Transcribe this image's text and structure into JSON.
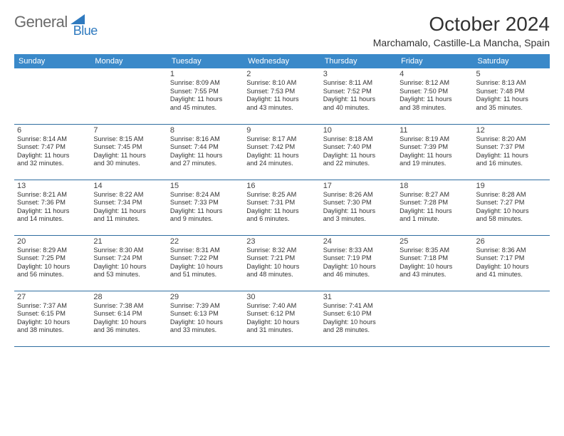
{
  "logo": {
    "word1": "General",
    "word2": "Blue",
    "mark_color": "#2f7abf",
    "text_color": "#6b6b6b"
  },
  "title": "October 2024",
  "location": "Marchamalo, Castille-La Mancha, Spain",
  "header_bg": "#3a89c9",
  "header_fg": "#ffffff",
  "border_color": "#2f6ea0",
  "weekdays": [
    "Sunday",
    "Monday",
    "Tuesday",
    "Wednesday",
    "Thursday",
    "Friday",
    "Saturday"
  ],
  "cell_fontsize": 9.2,
  "daynum_fontsize": 11,
  "weeks": [
    [
      null,
      null,
      {
        "n": "1",
        "sr": "Sunrise: 8:09 AM",
        "ss": "Sunset: 7:55 PM",
        "d1": "Daylight: 11 hours",
        "d2": "and 45 minutes."
      },
      {
        "n": "2",
        "sr": "Sunrise: 8:10 AM",
        "ss": "Sunset: 7:53 PM",
        "d1": "Daylight: 11 hours",
        "d2": "and 43 minutes."
      },
      {
        "n": "3",
        "sr": "Sunrise: 8:11 AM",
        "ss": "Sunset: 7:52 PM",
        "d1": "Daylight: 11 hours",
        "d2": "and 40 minutes."
      },
      {
        "n": "4",
        "sr": "Sunrise: 8:12 AM",
        "ss": "Sunset: 7:50 PM",
        "d1": "Daylight: 11 hours",
        "d2": "and 38 minutes."
      },
      {
        "n": "5",
        "sr": "Sunrise: 8:13 AM",
        "ss": "Sunset: 7:48 PM",
        "d1": "Daylight: 11 hours",
        "d2": "and 35 minutes."
      }
    ],
    [
      {
        "n": "6",
        "sr": "Sunrise: 8:14 AM",
        "ss": "Sunset: 7:47 PM",
        "d1": "Daylight: 11 hours",
        "d2": "and 32 minutes."
      },
      {
        "n": "7",
        "sr": "Sunrise: 8:15 AM",
        "ss": "Sunset: 7:45 PM",
        "d1": "Daylight: 11 hours",
        "d2": "and 30 minutes."
      },
      {
        "n": "8",
        "sr": "Sunrise: 8:16 AM",
        "ss": "Sunset: 7:44 PM",
        "d1": "Daylight: 11 hours",
        "d2": "and 27 minutes."
      },
      {
        "n": "9",
        "sr": "Sunrise: 8:17 AM",
        "ss": "Sunset: 7:42 PM",
        "d1": "Daylight: 11 hours",
        "d2": "and 24 minutes."
      },
      {
        "n": "10",
        "sr": "Sunrise: 8:18 AM",
        "ss": "Sunset: 7:40 PM",
        "d1": "Daylight: 11 hours",
        "d2": "and 22 minutes."
      },
      {
        "n": "11",
        "sr": "Sunrise: 8:19 AM",
        "ss": "Sunset: 7:39 PM",
        "d1": "Daylight: 11 hours",
        "d2": "and 19 minutes."
      },
      {
        "n": "12",
        "sr": "Sunrise: 8:20 AM",
        "ss": "Sunset: 7:37 PM",
        "d1": "Daylight: 11 hours",
        "d2": "and 16 minutes."
      }
    ],
    [
      {
        "n": "13",
        "sr": "Sunrise: 8:21 AM",
        "ss": "Sunset: 7:36 PM",
        "d1": "Daylight: 11 hours",
        "d2": "and 14 minutes."
      },
      {
        "n": "14",
        "sr": "Sunrise: 8:22 AM",
        "ss": "Sunset: 7:34 PM",
        "d1": "Daylight: 11 hours",
        "d2": "and 11 minutes."
      },
      {
        "n": "15",
        "sr": "Sunrise: 8:24 AM",
        "ss": "Sunset: 7:33 PM",
        "d1": "Daylight: 11 hours",
        "d2": "and 9 minutes."
      },
      {
        "n": "16",
        "sr": "Sunrise: 8:25 AM",
        "ss": "Sunset: 7:31 PM",
        "d1": "Daylight: 11 hours",
        "d2": "and 6 minutes."
      },
      {
        "n": "17",
        "sr": "Sunrise: 8:26 AM",
        "ss": "Sunset: 7:30 PM",
        "d1": "Daylight: 11 hours",
        "d2": "and 3 minutes."
      },
      {
        "n": "18",
        "sr": "Sunrise: 8:27 AM",
        "ss": "Sunset: 7:28 PM",
        "d1": "Daylight: 11 hours",
        "d2": "and 1 minute."
      },
      {
        "n": "19",
        "sr": "Sunrise: 8:28 AM",
        "ss": "Sunset: 7:27 PM",
        "d1": "Daylight: 10 hours",
        "d2": "and 58 minutes."
      }
    ],
    [
      {
        "n": "20",
        "sr": "Sunrise: 8:29 AM",
        "ss": "Sunset: 7:25 PM",
        "d1": "Daylight: 10 hours",
        "d2": "and 56 minutes."
      },
      {
        "n": "21",
        "sr": "Sunrise: 8:30 AM",
        "ss": "Sunset: 7:24 PM",
        "d1": "Daylight: 10 hours",
        "d2": "and 53 minutes."
      },
      {
        "n": "22",
        "sr": "Sunrise: 8:31 AM",
        "ss": "Sunset: 7:22 PM",
        "d1": "Daylight: 10 hours",
        "d2": "and 51 minutes."
      },
      {
        "n": "23",
        "sr": "Sunrise: 8:32 AM",
        "ss": "Sunset: 7:21 PM",
        "d1": "Daylight: 10 hours",
        "d2": "and 48 minutes."
      },
      {
        "n": "24",
        "sr": "Sunrise: 8:33 AM",
        "ss": "Sunset: 7:19 PM",
        "d1": "Daylight: 10 hours",
        "d2": "and 46 minutes."
      },
      {
        "n": "25",
        "sr": "Sunrise: 8:35 AM",
        "ss": "Sunset: 7:18 PM",
        "d1": "Daylight: 10 hours",
        "d2": "and 43 minutes."
      },
      {
        "n": "26",
        "sr": "Sunrise: 8:36 AM",
        "ss": "Sunset: 7:17 PM",
        "d1": "Daylight: 10 hours",
        "d2": "and 41 minutes."
      }
    ],
    [
      {
        "n": "27",
        "sr": "Sunrise: 7:37 AM",
        "ss": "Sunset: 6:15 PM",
        "d1": "Daylight: 10 hours",
        "d2": "and 38 minutes."
      },
      {
        "n": "28",
        "sr": "Sunrise: 7:38 AM",
        "ss": "Sunset: 6:14 PM",
        "d1": "Daylight: 10 hours",
        "d2": "and 36 minutes."
      },
      {
        "n": "29",
        "sr": "Sunrise: 7:39 AM",
        "ss": "Sunset: 6:13 PM",
        "d1": "Daylight: 10 hours",
        "d2": "and 33 minutes."
      },
      {
        "n": "30",
        "sr": "Sunrise: 7:40 AM",
        "ss": "Sunset: 6:12 PM",
        "d1": "Daylight: 10 hours",
        "d2": "and 31 minutes."
      },
      {
        "n": "31",
        "sr": "Sunrise: 7:41 AM",
        "ss": "Sunset: 6:10 PM",
        "d1": "Daylight: 10 hours",
        "d2": "and 28 minutes."
      },
      null,
      null
    ]
  ]
}
